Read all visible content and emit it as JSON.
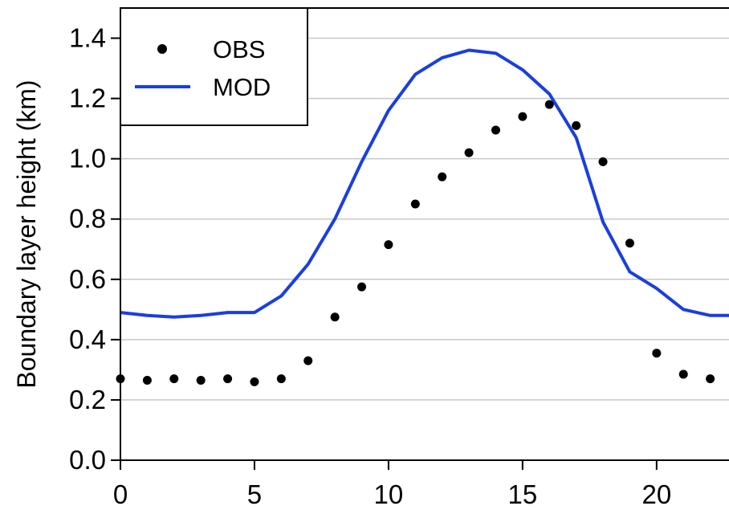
{
  "chart_data": {
    "type": "line",
    "ylabel": "Boundary layer height (km)",
    "xlim": [
      0,
      22.7
    ],
    "ylim": [
      0,
      1.5
    ],
    "x_ticks": [
      "0",
      "5",
      "10",
      "15",
      "20"
    ],
    "y_ticks": [
      "0.0",
      "0.2",
      "0.4",
      "0.6",
      "0.8",
      "1.0",
      "1.2",
      "1.4"
    ],
    "grid": "horizontal",
    "legend_position": "top-left",
    "series": [
      {
        "name": "OBS",
        "style": "points",
        "color": "#000000",
        "x": [
          0,
          1,
          2,
          3,
          4,
          5,
          6,
          7,
          8,
          9,
          10,
          11,
          12,
          13,
          14,
          15,
          16,
          17,
          18,
          19,
          20,
          21,
          22
        ],
        "y": [
          0.27,
          0.265,
          0.27,
          0.265,
          0.27,
          0.26,
          0.27,
          0.33,
          0.475,
          0.575,
          0.715,
          0.85,
          0.94,
          1.02,
          1.095,
          1.14,
          1.18,
          1.11,
          0.99,
          0.72,
          0.355,
          0.285,
          0.27
        ]
      },
      {
        "name": "MOD",
        "style": "line",
        "color": "#1a3ee0",
        "x": [
          0,
          1,
          2,
          3,
          4,
          5,
          6,
          7,
          8,
          9,
          10,
          11,
          12,
          13,
          14,
          15,
          16,
          17,
          18,
          19,
          20,
          21,
          22,
          22.7
        ],
        "y": [
          0.49,
          0.48,
          0.475,
          0.48,
          0.49,
          0.49,
          0.545,
          0.65,
          0.8,
          0.99,
          1.16,
          1.28,
          1.335,
          1.36,
          1.35,
          1.295,
          1.215,
          1.07,
          0.79,
          0.625,
          0.57,
          0.5,
          0.48,
          0.48
        ]
      }
    ]
  }
}
